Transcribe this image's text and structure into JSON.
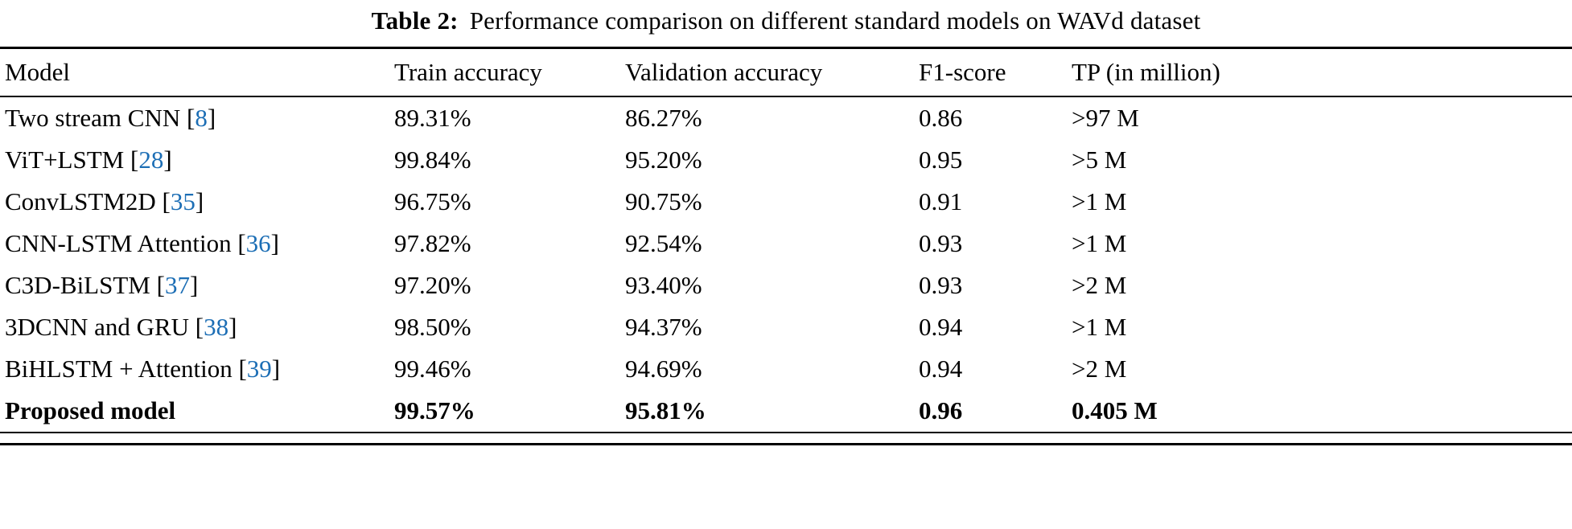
{
  "caption": {
    "label": "Table 2:",
    "text": "Performance comparison on different standard models on WAVd dataset"
  },
  "table": {
    "columns": [
      "Model",
      "Train accuracy",
      "Validation accuracy",
      "F1-score",
      "TP (in million)"
    ],
    "rows": [
      {
        "model": "Two stream CNN",
        "citation": "8",
        "train_accuracy": "89.31%",
        "validation_accuracy": "86.27%",
        "f1_score": "0.86",
        "tp": ">97 M",
        "bold": false
      },
      {
        "model": "ViT+LSTM",
        "citation": "28",
        "train_accuracy": "99.84%",
        "validation_accuracy": "95.20%",
        "f1_score": "0.95",
        "tp": ">5 M",
        "bold": false
      },
      {
        "model": "ConvLSTM2D",
        "citation": "35",
        "train_accuracy": "96.75%",
        "validation_accuracy": "90.75%",
        "f1_score": "0.91",
        "tp": ">1 M",
        "bold": false
      },
      {
        "model": "CNN-LSTM Attention",
        "citation": "36",
        "train_accuracy": "97.82%",
        "validation_accuracy": "92.54%",
        "f1_score": "0.93",
        "tp": ">1 M",
        "bold": false
      },
      {
        "model": "C3D-BiLSTM",
        "citation": "37",
        "train_accuracy": "97.20%",
        "validation_accuracy": "93.40%",
        "f1_score": "0.93",
        "tp": ">2 M",
        "bold": false
      },
      {
        "model": "3DCNN and GRU",
        "citation": "38",
        "train_accuracy": "98.50%",
        "validation_accuracy": "94.37%",
        "f1_score": "0.94",
        "tp": ">1 M",
        "bold": false
      },
      {
        "model": "BiHLSTM + Attention",
        "citation": "39",
        "train_accuracy": "99.46%",
        "validation_accuracy": "94.69%",
        "f1_score": "0.94",
        "tp": ">2 M",
        "bold": false
      },
      {
        "model": "Proposed model",
        "citation": null,
        "train_accuracy": "99.57%",
        "validation_accuracy": "95.81%",
        "f1_score": "0.96",
        "tp": "0.405 M",
        "bold": true
      }
    ]
  },
  "colors": {
    "citation": "#1c6eb5",
    "text": "#000000",
    "rule": "#000000"
  }
}
